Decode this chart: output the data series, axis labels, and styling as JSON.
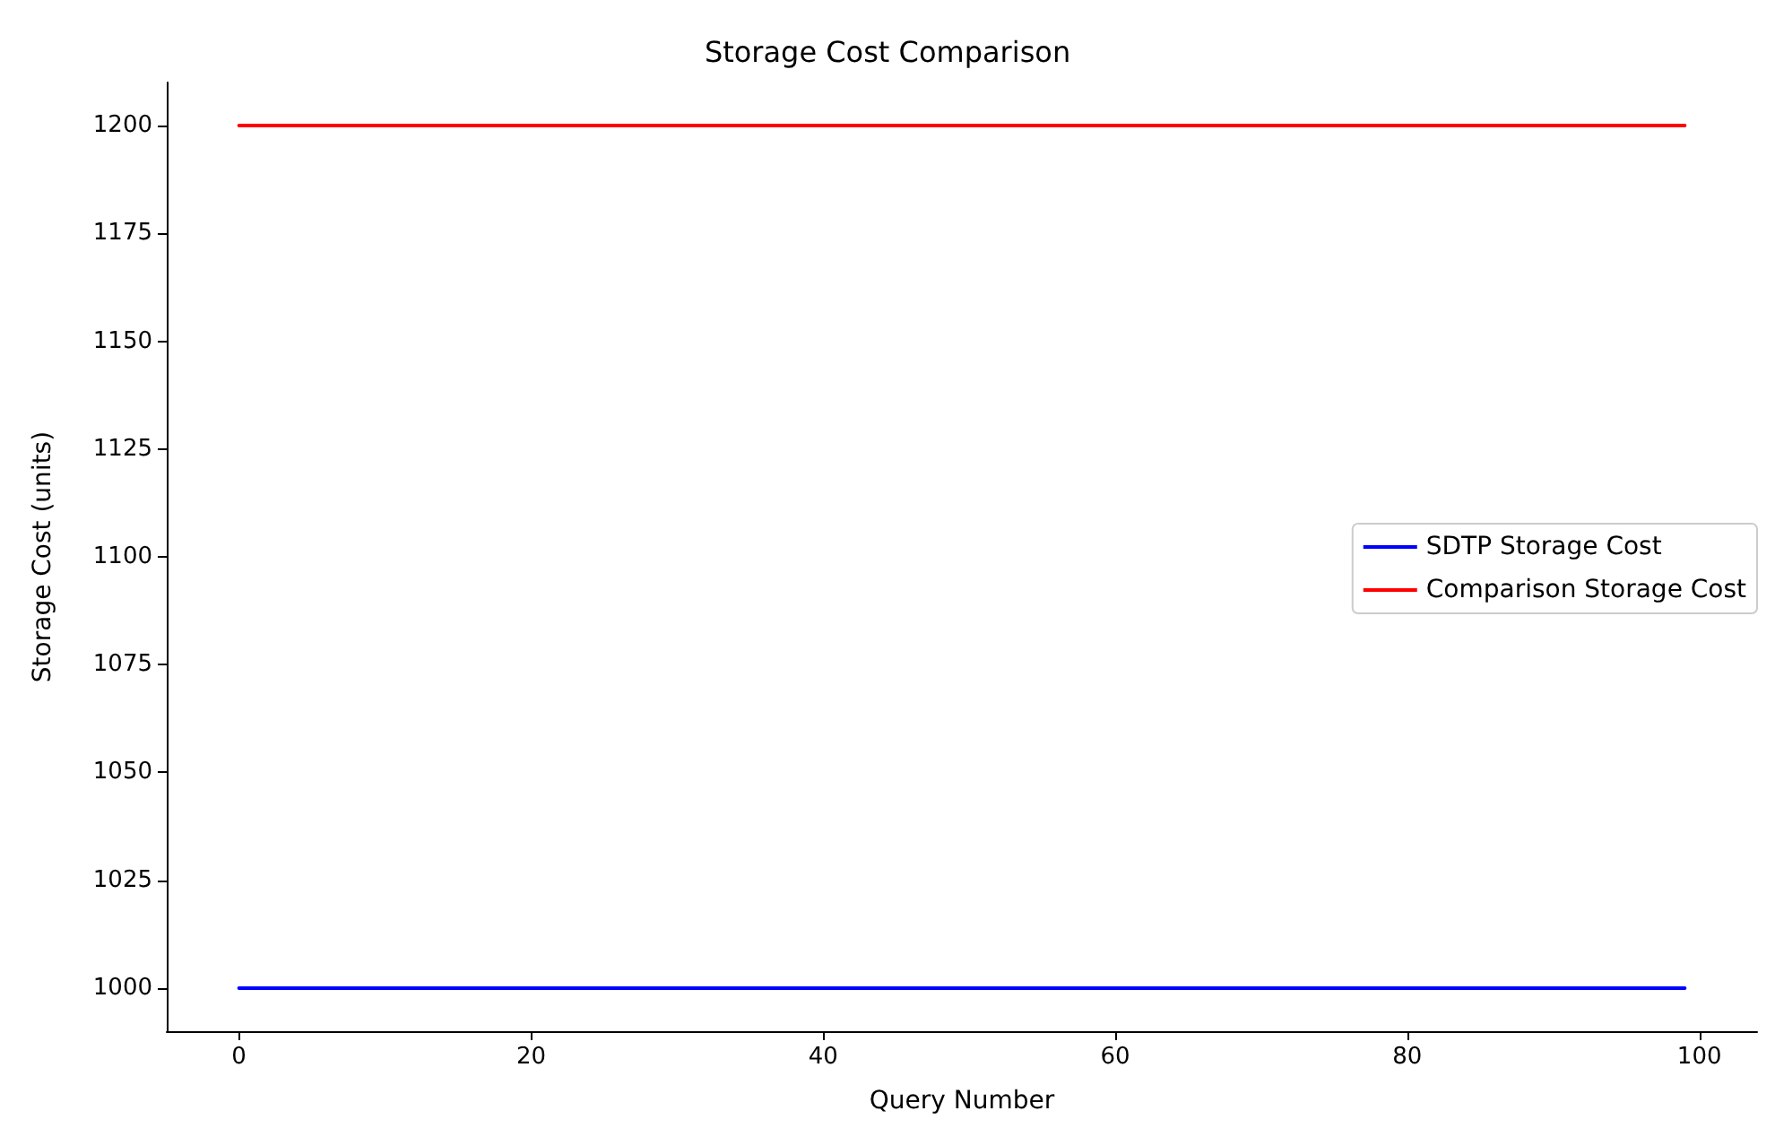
{
  "chart_data": {
    "type": "line",
    "title": "Storage Cost Comparison",
    "xlabel": "Query Number",
    "ylabel": "Storage Cost (units)",
    "x": [
      0,
      99
    ],
    "series": [
      {
        "name": "SDTP Storage Cost",
        "color": "#0000ff",
        "values": [
          1000,
          1000
        ]
      },
      {
        "name": "Comparison Storage Cost",
        "color": "#ff0000",
        "values": [
          1200,
          1200
        ]
      }
    ],
    "xlim": [
      -4.95,
      103.95
    ],
    "xticks": [
      0,
      20,
      40,
      60,
      80,
      100
    ],
    "ylim": [
      990,
      1210
    ],
    "yticks": [
      1000,
      1025,
      1050,
      1075,
      1100,
      1125,
      1150,
      1175,
      1200
    ],
    "grid": false,
    "legend": "right",
    "marker": "none",
    "line_style": "solid"
  }
}
